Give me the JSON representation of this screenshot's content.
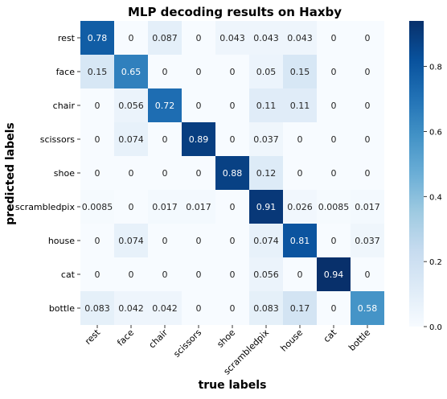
{
  "chart_data": {
    "type": "heatmap",
    "title": "MLP decoding results on Haxby",
    "xlabel": "true labels",
    "ylabel": "predicted labels",
    "x_categories": [
      "rest",
      "face",
      "chair",
      "scissors",
      "shoe",
      "scrambledpix",
      "house",
      "cat",
      "bottle"
    ],
    "y_categories": [
      "rest",
      "face",
      "chair",
      "scissors",
      "shoe",
      "scrambledpix",
      "house",
      "cat",
      "bottle"
    ],
    "values": [
      [
        0.78,
        0,
        0.087,
        0,
        0.043,
        0.043,
        0.043,
        0,
        0
      ],
      [
        0.15,
        0.65,
        0,
        0,
        0,
        0.05,
        0.15,
        0,
        0
      ],
      [
        0,
        0.056,
        0.72,
        0,
        0,
        0.11,
        0.11,
        0,
        0
      ],
      [
        0,
        0.074,
        0,
        0.89,
        0,
        0.037,
        0,
        0,
        0
      ],
      [
        0,
        0,
        0,
        0,
        0.88,
        0.12,
        0,
        0,
        0
      ],
      [
        0.0085,
        0,
        0.017,
        0.017,
        0,
        0.91,
        0.026,
        0.0085,
        0.017
      ],
      [
        0,
        0.074,
        0,
        0,
        0,
        0.074,
        0.81,
        0,
        0.037
      ],
      [
        0,
        0,
        0,
        0,
        0,
        0.056,
        0,
        0.94,
        0
      ],
      [
        0.083,
        0.042,
        0.042,
        0,
        0,
        0.083,
        0.17,
        0,
        0.58
      ]
    ],
    "colorbar": {
      "min": 0,
      "max": 0.94,
      "ticks": [
        "0.0",
        "0.2",
        "0.4",
        "0.6",
        "0.8"
      ],
      "colormap": "Blues"
    }
  }
}
